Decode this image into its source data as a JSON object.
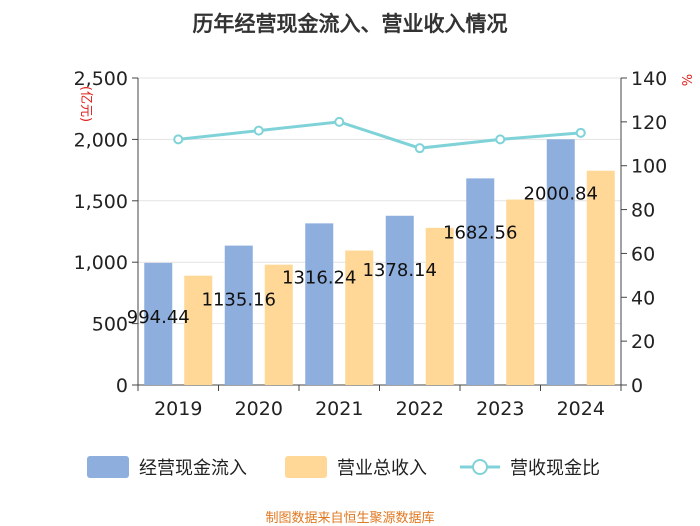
{
  "title": "历年经营现金流入、营业收入情况",
  "footer": "制图数据来自恒生聚源数据库",
  "chart_data": {
    "type": "bar",
    "categories": [
      "2019",
      "2020",
      "2021",
      "2022",
      "2023",
      "2024"
    ],
    "series": [
      {
        "name": "经营现金流入",
        "kind": "bar",
        "axis": "left",
        "color": "#8eaedd",
        "values": [
          994.44,
          1135.16,
          1316.24,
          1378.14,
          1682.56,
          2000.84
        ],
        "labels": [
          "994.44",
          "1135.16",
          "1316.24",
          "1378.14",
          "1682.56",
          "2000.84"
        ]
      },
      {
        "name": "营业总收入",
        "kind": "bar",
        "axis": "left",
        "color": "#ffd797",
        "values": [
          890,
          980,
          1095,
          1280,
          1510,
          1745
        ]
      },
      {
        "name": "营收现金比",
        "kind": "line",
        "axis": "right",
        "color": "#7fd3d8",
        "values": [
          112,
          116,
          120,
          108,
          112,
          115
        ]
      }
    ],
    "left_axis": {
      "unit": "亿元",
      "min": 0,
      "max": 2500,
      "ticks": [
        0,
        500,
        1000,
        1500,
        2000,
        2500
      ],
      "tick_labels": [
        "0",
        "500",
        "1,000",
        "1,500",
        "2,000",
        "2,500"
      ]
    },
    "right_axis": {
      "unit": "%",
      "min": 0,
      "max": 140,
      "ticks": [
        0,
        20,
        40,
        60,
        80,
        100,
        120,
        140
      ],
      "tick_labels": [
        "0",
        "20",
        "40",
        "60",
        "80",
        "100",
        "120",
        "140"
      ]
    },
    "grid": true,
    "legend_position": "bottom"
  }
}
